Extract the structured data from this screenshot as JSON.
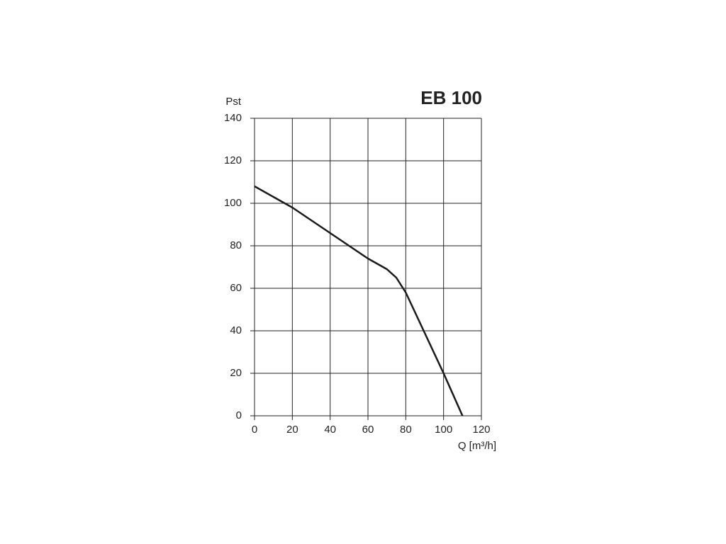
{
  "chart_data": {
    "type": "line",
    "title": "EB 100",
    "y_label": "Pst",
    "x_label": "Q [m³/h]",
    "x": [
      0,
      10,
      20,
      30,
      40,
      50,
      60,
      70,
      75,
      80,
      90,
      100,
      110
    ],
    "series": [
      {
        "name": null,
        "color": "#1a1a1a",
        "values": [
          108,
          103,
          98,
          92,
          86,
          80,
          74,
          69,
          65,
          58,
          39,
          20,
          0
        ]
      }
    ],
    "xlim": [
      0,
      120
    ],
    "xticks": [
      0,
      20,
      40,
      60,
      80,
      100,
      120
    ],
    "ylim": [
      0,
      140
    ],
    "yticks": [
      0,
      20,
      40,
      60,
      80,
      100,
      120,
      140
    ],
    "grid": true
  }
}
